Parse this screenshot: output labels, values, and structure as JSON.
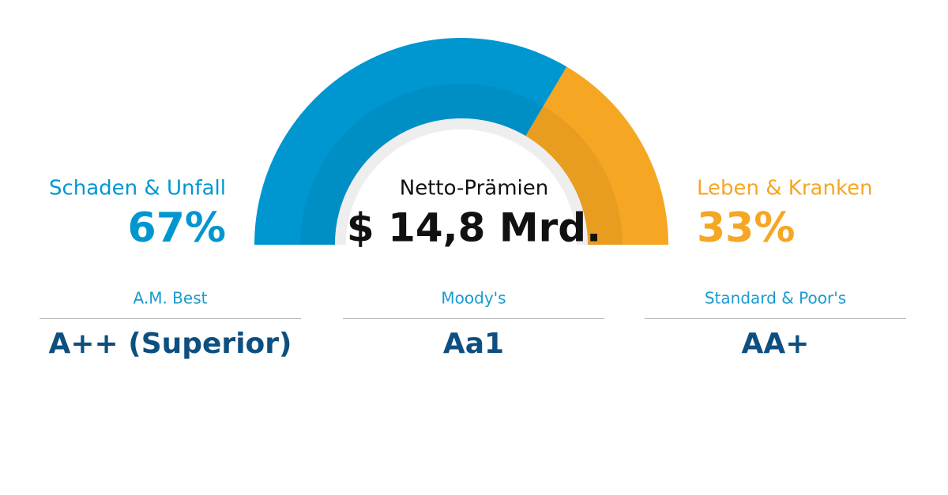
{
  "chart_data": {
    "type": "donut",
    "categories": [
      "Schaden & Unfall",
      "Leben & Kranken"
    ],
    "values": [
      67,
      33
    ],
    "value_labels": [
      "67%",
      "33%"
    ],
    "colors": [
      "#0097d0",
      "#f5a623"
    ],
    "center_title": "Netto-Prämien",
    "center_value": "$ 14,8 Mrd."
  },
  "ratings": [
    {
      "agency": "A.M. Best",
      "rating": "A++ (Superior)"
    },
    {
      "agency": "Moody's",
      "rating": "Aa1"
    },
    {
      "agency": "Standard & Poor's",
      "rating": "AA+"
    }
  ]
}
